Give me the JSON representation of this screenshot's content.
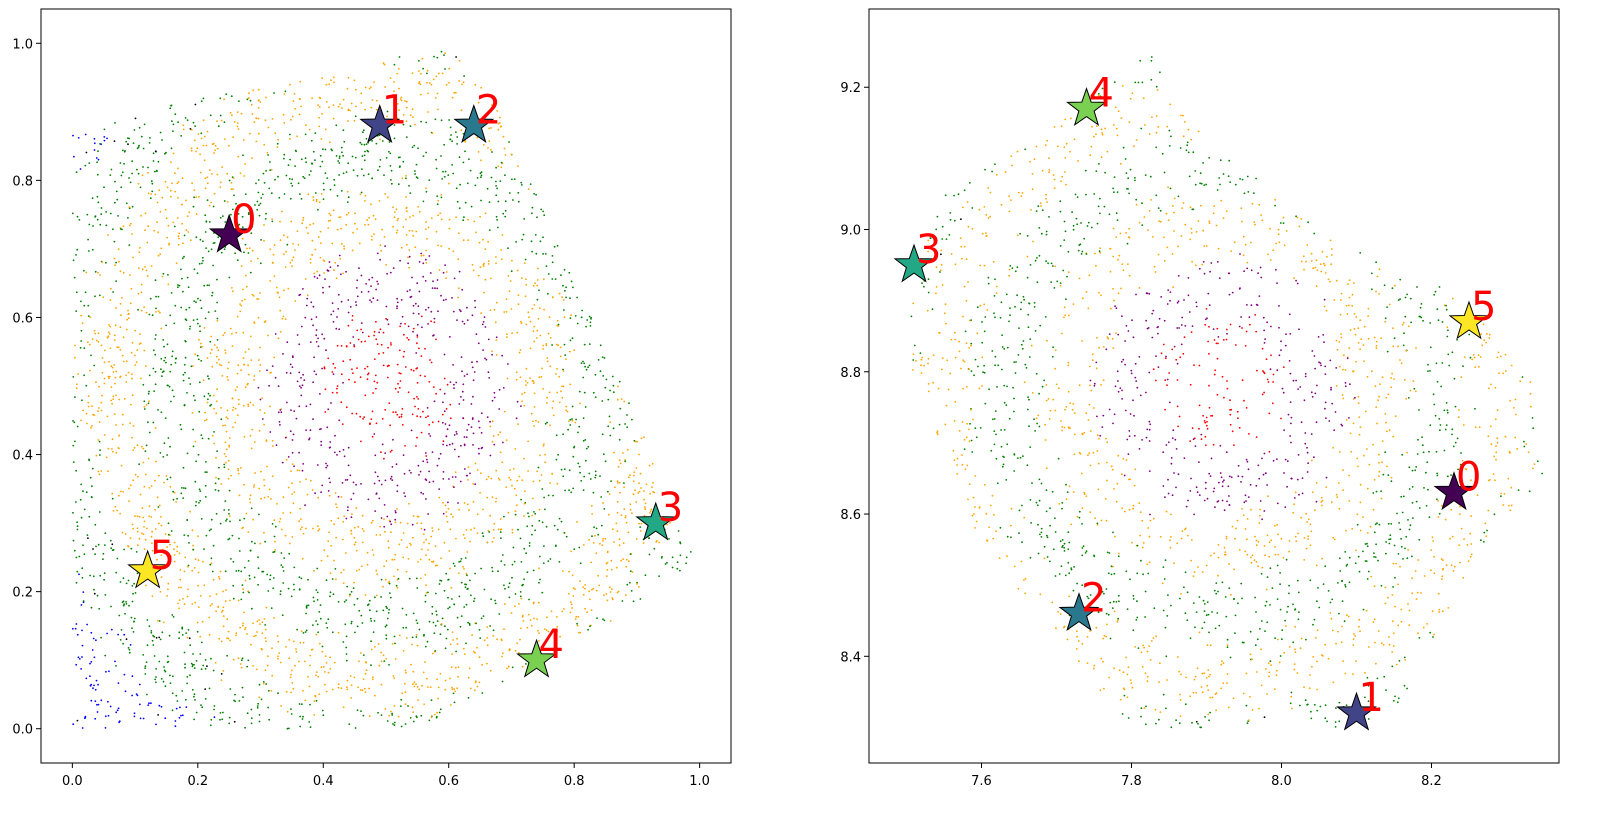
{
  "chart_data": [
    {
      "type": "scatter",
      "title": "",
      "xlabel": "",
      "ylabel": "",
      "xlim": [
        -0.05,
        1.05
      ],
      "ylim": [
        -0.05,
        1.05
      ],
      "x_ticks": [
        0.0,
        0.2,
        0.4,
        0.6,
        0.8,
        1.0
      ],
      "x_tick_labels": [
        "0.0",
        "0.2",
        "0.4",
        "0.6",
        "0.8",
        "1.0"
      ],
      "y_ticks": [
        0.0,
        0.2,
        0.4,
        0.6,
        0.8,
        1.0
      ],
      "y_tick_labels": [
        "0.0",
        "0.2",
        "0.4",
        "0.6",
        "0.8",
        "1.0"
      ],
      "grid": false,
      "legend": "none",
      "point_colors": {
        "center": "#ff0000",
        "ring1": "#800080",
        "ring2": "#ffa500",
        "ring3": "#008000",
        "ring4": "#0000ff",
        "outer": "#000000"
      },
      "hull": [
        [
          0.0,
          0.87
        ],
        [
          0.2,
          0.92
        ],
        [
          0.4,
          0.95
        ],
        [
          0.6,
          1.0
        ],
        [
          0.68,
          0.9
        ],
        [
          0.95,
          0.35
        ],
        [
          1.0,
          0.25
        ],
        [
          0.85,
          0.15
        ],
        [
          0.55,
          0.0
        ],
        [
          0.0,
          0.0
        ]
      ],
      "stars": [
        {
          "label": "0",
          "x": 0.25,
          "y": 0.72,
          "color": "#440154"
        },
        {
          "label": "1",
          "x": 0.49,
          "y": 0.88,
          "color": "#414487"
        },
        {
          "label": "2",
          "x": 0.64,
          "y": 0.88,
          "color": "#2a788e"
        },
        {
          "label": "3",
          "x": 0.93,
          "y": 0.3,
          "color": "#22a884"
        },
        {
          "label": "4",
          "x": 0.74,
          "y": 0.1,
          "color": "#7ad151"
        },
        {
          "label": "5",
          "x": 0.12,
          "y": 0.23,
          "color": "#fde725"
        }
      ]
    },
    {
      "type": "scatter",
      "title": "",
      "xlabel": "",
      "ylabel": "",
      "xlim": [
        7.45,
        8.37
      ],
      "ylim": [
        8.25,
        9.31
      ],
      "x_ticks": [
        7.6,
        7.8,
        8.0,
        8.2
      ],
      "x_tick_labels": [
        "7.6",
        "7.8",
        "8.0",
        "8.2"
      ],
      "y_ticks": [
        8.4,
        8.6,
        8.8,
        9.0,
        9.2
      ],
      "y_tick_labels": [
        "8.4",
        "8.6",
        "8.8",
        "9.0",
        "9.2"
      ],
      "grid": false,
      "legend": "none",
      "point_colors": {
        "center": "#ff0000",
        "ring1": "#800080",
        "ring2": "#ffa500",
        "ring3": "#008000",
        "ring4": "#0000ff",
        "outer": "#000000"
      },
      "hull": [
        [
          7.49,
          8.9
        ],
        [
          7.55,
          9.05
        ],
        [
          7.7,
          9.15
        ],
        [
          7.78,
          9.22
        ],
        [
          7.83,
          9.25
        ],
        [
          7.88,
          9.15
        ],
        [
          8.05,
          9.0
        ],
        [
          8.25,
          8.9
        ],
        [
          8.33,
          8.8
        ],
        [
          8.35,
          8.65
        ],
        [
          8.26,
          8.55
        ],
        [
          8.15,
          8.3
        ],
        [
          7.8,
          8.3
        ],
        [
          7.6,
          8.55
        ],
        [
          7.49,
          8.85
        ]
      ],
      "stars": [
        {
          "label": "0",
          "x": 8.23,
          "y": 8.63,
          "color": "#440154"
        },
        {
          "label": "1",
          "x": 8.1,
          "y": 8.32,
          "color": "#414487"
        },
        {
          "label": "2",
          "x": 7.73,
          "y": 8.46,
          "color": "#2a788e"
        },
        {
          "label": "3",
          "x": 7.51,
          "y": 8.95,
          "color": "#22a884"
        },
        {
          "label": "4",
          "x": 7.74,
          "y": 9.17,
          "color": "#7ad151"
        },
        {
          "label": "5",
          "x": 8.25,
          "y": 8.87,
          "color": "#fde725"
        }
      ]
    }
  ]
}
